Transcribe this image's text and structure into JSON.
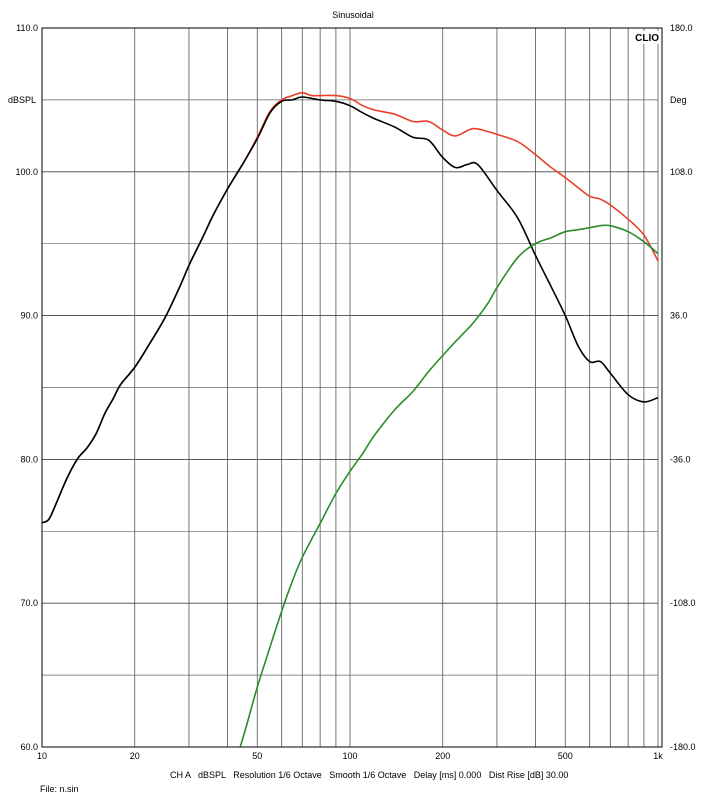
{
  "chart_data": {
    "type": "line",
    "title": "Sinusoidal",
    "logo": "CLIO",
    "left_axis": {
      "unit_label": "dBSPL",
      "range": [
        60,
        110
      ],
      "ticks": [
        {
          "value": 60,
          "label": "60.0"
        },
        {
          "value": 70,
          "label": "70.0"
        },
        {
          "value": 80,
          "label": "80.0"
        },
        {
          "value": 90,
          "label": "90.0"
        },
        {
          "value": 100,
          "label": "100.0"
        },
        {
          "value": 110,
          "label": "110.0"
        }
      ],
      "minor_gridlines": [
        65,
        75,
        85,
        95,
        105
      ]
    },
    "right_axis": {
      "unit_label": "Deg",
      "range": [
        -180,
        180
      ],
      "ticks": [
        {
          "value": -180,
          "label": "-180.0"
        },
        {
          "value": -108,
          "label": "-108.0"
        },
        {
          "value": -36,
          "label": "-36.0"
        },
        {
          "value": 36,
          "label": "36.0"
        },
        {
          "value": 108,
          "label": "108.0"
        },
        {
          "value": 180,
          "label": "180.0"
        }
      ]
    },
    "x_axis": {
      "scale": "log",
      "range": [
        10,
        1000
      ],
      "ticks": [
        {
          "value": 10,
          "label": "10"
        },
        {
          "value": 20,
          "label": "20"
        },
        {
          "value": 50,
          "label": "50"
        },
        {
          "value": 100,
          "label": "100"
        },
        {
          "value": 200,
          "label": "200"
        },
        {
          "value": 500,
          "label": "500"
        },
        {
          "value": 1000,
          "label": "1k"
        }
      ],
      "gridlines": [
        10,
        20,
        30,
        40,
        50,
        60,
        70,
        80,
        90,
        100,
        200,
        300,
        400,
        500,
        600,
        700,
        800,
        900,
        1000
      ]
    },
    "grid": true,
    "series": [
      {
        "color": "#e8402a",
        "axis": "left",
        "points": [
          [
            10,
            75.6
          ],
          [
            10.5,
            75.8
          ],
          [
            11,
            76.7
          ],
          [
            12,
            78.6
          ],
          [
            13,
            80.0
          ],
          [
            14,
            80.8
          ],
          [
            15,
            81.8
          ],
          [
            16,
            83.2
          ],
          [
            17,
            84.2
          ],
          [
            18,
            85.2
          ],
          [
            20,
            86.4
          ],
          [
            22,
            87.8
          ],
          [
            25,
            89.8
          ],
          [
            28,
            92.0
          ],
          [
            30,
            93.5
          ],
          [
            33,
            95.3
          ],
          [
            36,
            97.0
          ],
          [
            40,
            98.8
          ],
          [
            45,
            100.6
          ],
          [
            50,
            102.4
          ],
          [
            55,
            104.2
          ],
          [
            60,
            105.0
          ],
          [
            65,
            105.3
          ],
          [
            70,
            105.5
          ],
          [
            75,
            105.3
          ],
          [
            80,
            105.3
          ],
          [
            90,
            105.3
          ],
          [
            100,
            105.1
          ],
          [
            110,
            104.6
          ],
          [
            120,
            104.3
          ],
          [
            140,
            104.0
          ],
          [
            160,
            103.5
          ],
          [
            180,
            103.5
          ],
          [
            200,
            102.9
          ],
          [
            220,
            102.5
          ],
          [
            250,
            103.0
          ],
          [
            280,
            102.8
          ],
          [
            300,
            102.6
          ],
          [
            350,
            102.1
          ],
          [
            400,
            101.2
          ],
          [
            450,
            100.3
          ],
          [
            500,
            99.6
          ],
          [
            550,
            98.9
          ],
          [
            600,
            98.3
          ],
          [
            650,
            98.1
          ],
          [
            700,
            97.7
          ],
          [
            800,
            96.7
          ],
          [
            900,
            95.6
          ],
          [
            1000,
            93.8
          ]
        ]
      },
      {
        "color": "#000000",
        "axis": "left",
        "points": [
          [
            10,
            75.6
          ],
          [
            10.5,
            75.8
          ],
          [
            11,
            76.7
          ],
          [
            12,
            78.6
          ],
          [
            13,
            80.0
          ],
          [
            14,
            80.8
          ],
          [
            15,
            81.8
          ],
          [
            16,
            83.2
          ],
          [
            17,
            84.2
          ],
          [
            18,
            85.2
          ],
          [
            20,
            86.4
          ],
          [
            22,
            87.8
          ],
          [
            25,
            89.8
          ],
          [
            28,
            92.0
          ],
          [
            30,
            93.5
          ],
          [
            33,
            95.3
          ],
          [
            36,
            97.0
          ],
          [
            40,
            98.8
          ],
          [
            45,
            100.6
          ],
          [
            50,
            102.3
          ],
          [
            55,
            104.1
          ],
          [
            60,
            104.9
          ],
          [
            65,
            105.0
          ],
          [
            70,
            105.2
          ],
          [
            80,
            105.0
          ],
          [
            90,
            104.9
          ],
          [
            100,
            104.6
          ],
          [
            110,
            104.1
          ],
          [
            120,
            103.7
          ],
          [
            140,
            103.1
          ],
          [
            160,
            102.4
          ],
          [
            180,
            102.2
          ],
          [
            200,
            101.0
          ],
          [
            220,
            100.3
          ],
          [
            240,
            100.5
          ],
          [
            260,
            100.5
          ],
          [
            300,
            98.7
          ],
          [
            350,
            96.8
          ],
          [
            400,
            94.2
          ],
          [
            450,
            92.0
          ],
          [
            500,
            90.0
          ],
          [
            550,
            87.9
          ],
          [
            600,
            86.8
          ],
          [
            650,
            86.8
          ],
          [
            700,
            86.0
          ],
          [
            800,
            84.5
          ],
          [
            900,
            84.0
          ],
          [
            1000,
            84.3
          ]
        ]
      },
      {
        "color": "#2a8c2a",
        "axis": "right",
        "points": [
          [
            44,
            -180
          ],
          [
            46,
            -170
          ],
          [
            50,
            -150
          ],
          [
            55,
            -130
          ],
          [
            60,
            -112
          ],
          [
            65,
            -97
          ],
          [
            70,
            -85
          ],
          [
            80,
            -68
          ],
          [
            90,
            -53
          ],
          [
            100,
            -42
          ],
          [
            110,
            -33
          ],
          [
            120,
            -24
          ],
          [
            140,
            -11
          ],
          [
            160,
            -2
          ],
          [
            180,
            8
          ],
          [
            200,
            16
          ],
          [
            220,
            23
          ],
          [
            250,
            32
          ],
          [
            280,
            42
          ],
          [
            300,
            50
          ],
          [
            350,
            65
          ],
          [
            400,
            72
          ],
          [
            450,
            75
          ],
          [
            500,
            78
          ],
          [
            550,
            79
          ],
          [
            600,
            80
          ],
          [
            650,
            81
          ],
          [
            700,
            81
          ],
          [
            800,
            78
          ],
          [
            900,
            73
          ],
          [
            1000,
            67
          ]
        ]
      }
    ]
  },
  "footer": {
    "settings": "CH A   dBSPL   Resolution 1/6 Octave   Smooth 1/6 Octave   Delay [ms] 0.000   Dist Rise [dB] 30.00",
    "file": "File: n.sin"
  }
}
